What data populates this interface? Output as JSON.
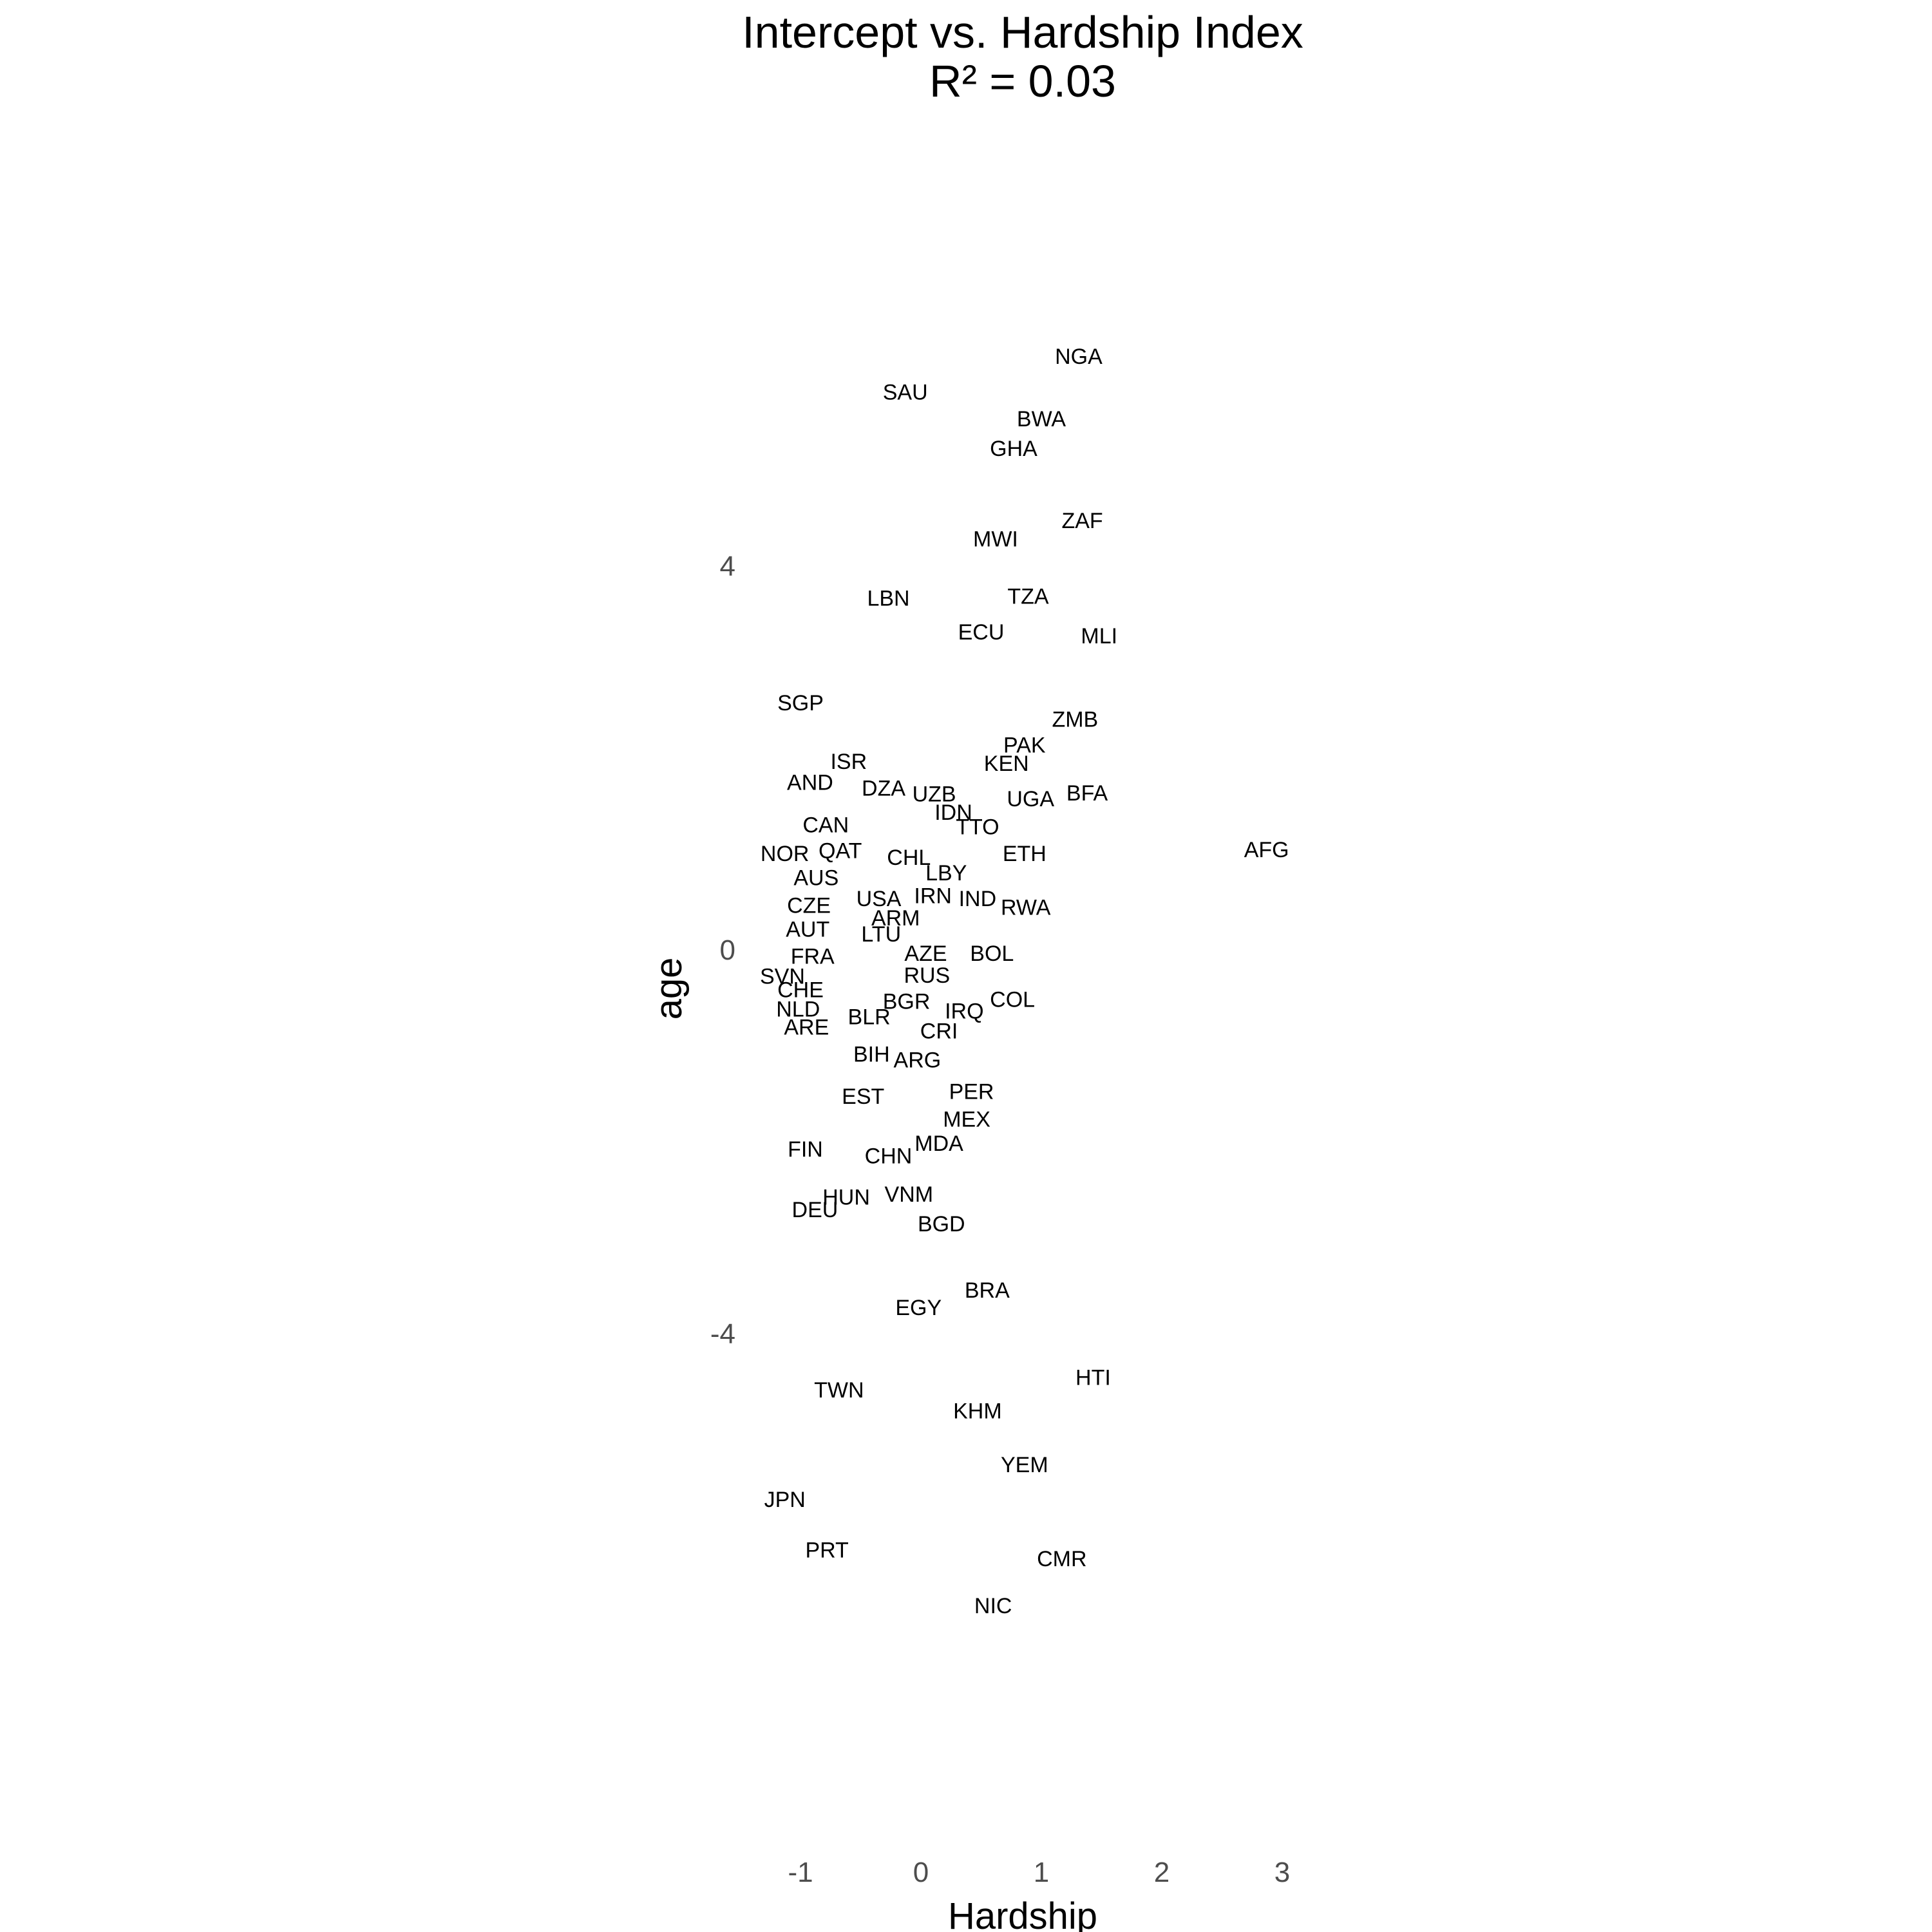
{
  "chart_data": {
    "type": "scatter",
    "title": "Intercept vs. Hardship Index",
    "subtitle": "R² = 0.03",
    "xlabel": "Hardship",
    "ylabel": "age",
    "xlim": [
      -1.2,
      3.1
    ],
    "ylim": [
      -7.0,
      6.4
    ],
    "xticks": [
      -1,
      0,
      1,
      2,
      3
    ],
    "yticks": [
      4,
      0,
      -4
    ],
    "grid": false,
    "legend": "none",
    "points": [
      {
        "label": "NGA",
        "x": 1.31,
        "y": 6.18
      },
      {
        "label": "SAU",
        "x": -0.13,
        "y": 5.81
      },
      {
        "label": "BWA",
        "x": 1.0,
        "y": 5.53
      },
      {
        "label": "GHA",
        "x": 0.77,
        "y": 5.22
      },
      {
        "label": "ZAF",
        "x": 1.34,
        "y": 4.47
      },
      {
        "label": "MWI",
        "x": 0.62,
        "y": 4.28
      },
      {
        "label": "LBN",
        "x": -0.27,
        "y": 3.66
      },
      {
        "label": "TZA",
        "x": 0.89,
        "y": 3.68
      },
      {
        "label": "ECU",
        "x": 0.5,
        "y": 3.31
      },
      {
        "label": "MLI",
        "x": 1.48,
        "y": 3.27
      },
      {
        "label": "SGP",
        "x": -1.0,
        "y": 2.57
      },
      {
        "label": "ZMB",
        "x": 1.28,
        "y": 2.4
      },
      {
        "label": "PAK",
        "x": 0.86,
        "y": 2.13
      },
      {
        "label": "ISR",
        "x": -0.6,
        "y": 1.96
      },
      {
        "label": "KEN",
        "x": 0.71,
        "y": 1.94
      },
      {
        "label": "AND",
        "x": -0.92,
        "y": 1.74
      },
      {
        "label": "DZA",
        "x": -0.31,
        "y": 1.68
      },
      {
        "label": "UZB",
        "x": 0.11,
        "y": 1.62
      },
      {
        "label": "UGA",
        "x": 0.91,
        "y": 1.57
      },
      {
        "label": "BFA",
        "x": 1.38,
        "y": 1.63
      },
      {
        "label": "IDN",
        "x": 0.27,
        "y": 1.43
      },
      {
        "label": "TTO",
        "x": 0.47,
        "y": 1.28
      },
      {
        "label": "CAN",
        "x": -0.79,
        "y": 1.3
      },
      {
        "label": "NOR",
        "x": -1.13,
        "y": 1.0
      },
      {
        "label": "QAT",
        "x": -0.67,
        "y": 1.03
      },
      {
        "label": "CHL",
        "x": -0.1,
        "y": 0.96
      },
      {
        "label": "ETH",
        "x": 0.86,
        "y": 1.0
      },
      {
        "label": "AFG",
        "x": 2.87,
        "y": 1.04
      },
      {
        "label": "AUS",
        "x": -0.87,
        "y": 0.75
      },
      {
        "label": "LBY",
        "x": 0.21,
        "y": 0.8
      },
      {
        "label": "USA",
        "x": -0.35,
        "y": 0.53
      },
      {
        "label": "IRN",
        "x": 0.1,
        "y": 0.56
      },
      {
        "label": "IND",
        "x": 0.47,
        "y": 0.53
      },
      {
        "label": "RWA",
        "x": 0.87,
        "y": 0.44
      },
      {
        "label": "CZE",
        "x": -0.93,
        "y": 0.46
      },
      {
        "label": "ARM",
        "x": -0.21,
        "y": 0.33
      },
      {
        "label": "AUT",
        "x": -0.94,
        "y": 0.21
      },
      {
        "label": "LTU",
        "x": -0.33,
        "y": 0.16
      },
      {
        "label": "AZE",
        "x": 0.04,
        "y": -0.04
      },
      {
        "label": "BOL",
        "x": 0.59,
        "y": -0.04
      },
      {
        "label": "FRA",
        "x": -0.9,
        "y": -0.07
      },
      {
        "label": "RUS",
        "x": 0.05,
        "y": -0.27
      },
      {
        "label": "SVN",
        "x": -1.15,
        "y": -0.28
      },
      {
        "label": "CHE",
        "x": -1.0,
        "y": -0.42
      },
      {
        "label": "BGR",
        "x": -0.12,
        "y": -0.54
      },
      {
        "label": "COL",
        "x": 0.76,
        "y": -0.52
      },
      {
        "label": "NLD",
        "x": -1.02,
        "y": -0.62
      },
      {
        "label": "IRQ",
        "x": 0.36,
        "y": -0.64
      },
      {
        "label": "BLR",
        "x": -0.43,
        "y": -0.7
      },
      {
        "label": "ARE",
        "x": -0.95,
        "y": -0.81
      },
      {
        "label": "CRI",
        "x": 0.15,
        "y": -0.85
      },
      {
        "label": "BIH",
        "x": -0.41,
        "y": -1.09
      },
      {
        "label": "ARG",
        "x": -0.03,
        "y": -1.15
      },
      {
        "label": "EST",
        "x": -0.48,
        "y": -1.53
      },
      {
        "label": "PER",
        "x": 0.42,
        "y": -1.48
      },
      {
        "label": "MEX",
        "x": 0.38,
        "y": -1.77
      },
      {
        "label": "FIN",
        "x": -0.96,
        "y": -2.08
      },
      {
        "label": "MDA",
        "x": 0.15,
        "y": -2.02
      },
      {
        "label": "CHN",
        "x": -0.27,
        "y": -2.15
      },
      {
        "label": "HUN",
        "x": -0.62,
        "y": -2.58
      },
      {
        "label": "VNM",
        "x": -0.1,
        "y": -2.55
      },
      {
        "label": "DEU",
        "x": -0.88,
        "y": -2.71
      },
      {
        "label": "BGD",
        "x": 0.17,
        "y": -2.86
      },
      {
        "label": "BRA",
        "x": 0.55,
        "y": -3.55
      },
      {
        "label": "EGY",
        "x": -0.02,
        "y": -3.73
      },
      {
        "label": "HTI",
        "x": 1.43,
        "y": -4.46
      },
      {
        "label": "TWN",
        "x": -0.68,
        "y": -4.59
      },
      {
        "label": "KHM",
        "x": 0.47,
        "y": -4.81
      },
      {
        "label": "YEM",
        "x": 0.86,
        "y": -5.37
      },
      {
        "label": "JPN",
        "x": -1.13,
        "y": -5.73
      },
      {
        "label": "PRT",
        "x": -0.78,
        "y": -6.26
      },
      {
        "label": "CMR",
        "x": 1.17,
        "y": -6.35
      },
      {
        "label": "NIC",
        "x": 0.6,
        "y": -6.84
      }
    ]
  }
}
